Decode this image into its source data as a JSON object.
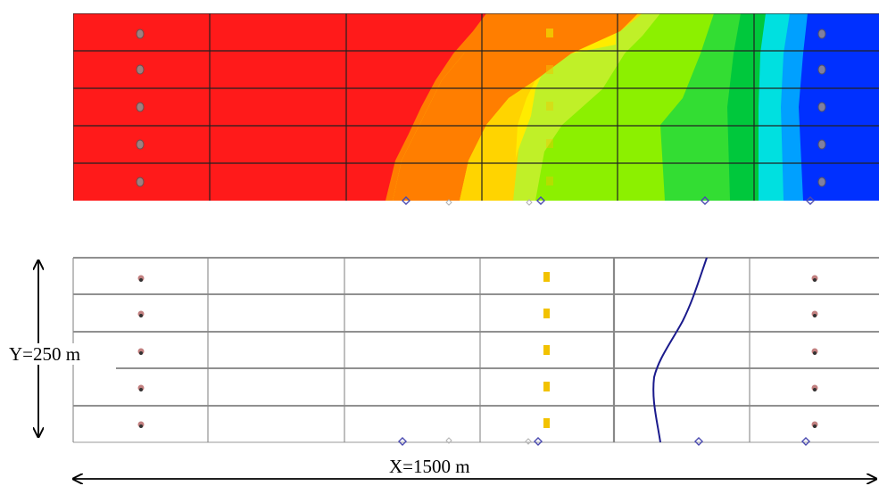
{
  "dimensions": {
    "y_label": "Y=250 m",
    "x_label": "X=1500 m"
  },
  "colors": {
    "contour_bands": [
      "#ff1a1a",
      "#ff7e00",
      "#ffd400",
      "#ffec00",
      "#c0f028",
      "#8cf000",
      "#33dd33",
      "#00c83c",
      "#00e0e0",
      "#00a0ff",
      "#0030ff"
    ],
    "grid_line": "#222222",
    "column_line": "#888888",
    "front_line": "#1a1a8c",
    "marker_well": "#9a7070",
    "marker_yellow": "#f2c200",
    "marker_diamond": "#4a4ab0"
  },
  "icons": {
    "producer_well": "ellipse-marker",
    "injection_point": "yellow-square-marker",
    "boundary_point": "diamond-marker"
  }
}
